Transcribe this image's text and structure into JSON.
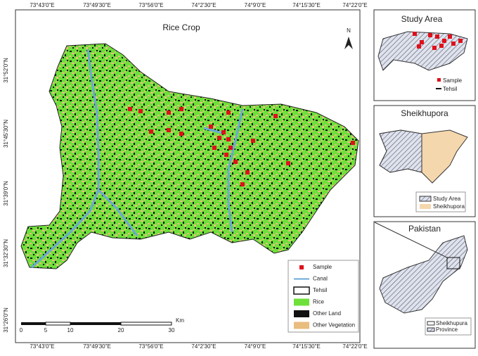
{
  "map": {
    "title": "Rice Crop",
    "north": "N",
    "top_coords": [
      "73°43'0\"E",
      "73°49'30\"E",
      "73°56'0\"E",
      "74°2'30\"E",
      "74°9'0\"E",
      "74°15'30\"E",
      "74°22'0\"E"
    ],
    "bottom_coords": [
      "73°43'0\"E",
      "73°49'30\"E",
      "73°56'0\"E",
      "74°2'30\"E",
      "74°9'0\"E",
      "74°15'30\"E",
      "74°22'0\"E"
    ],
    "left_coords": [
      "31°52'0\"N",
      "31°45'30\"N",
      "31°39'0\"N",
      "31°32'30\"N",
      "31°26'0\"N"
    ],
    "legend": [
      "Sample",
      "Canal",
      "Tehsil",
      "Rice",
      "Other Land",
      "Other Vegetation"
    ],
    "scale": {
      "ticks": [
        "0",
        "5",
        "10",
        "20",
        "30"
      ],
      "unit": "Km"
    }
  },
  "insets": [
    {
      "title": "Study Area",
      "legend": [
        "Sample",
        "Tehsil"
      ]
    },
    {
      "title": "Sheikhupora",
      "legend": [
        "Study Area",
        "Sheikhupora"
      ]
    },
    {
      "title": "Pakistan",
      "legend": [
        "Sheikhupura",
        "Province"
      ]
    }
  ]
}
